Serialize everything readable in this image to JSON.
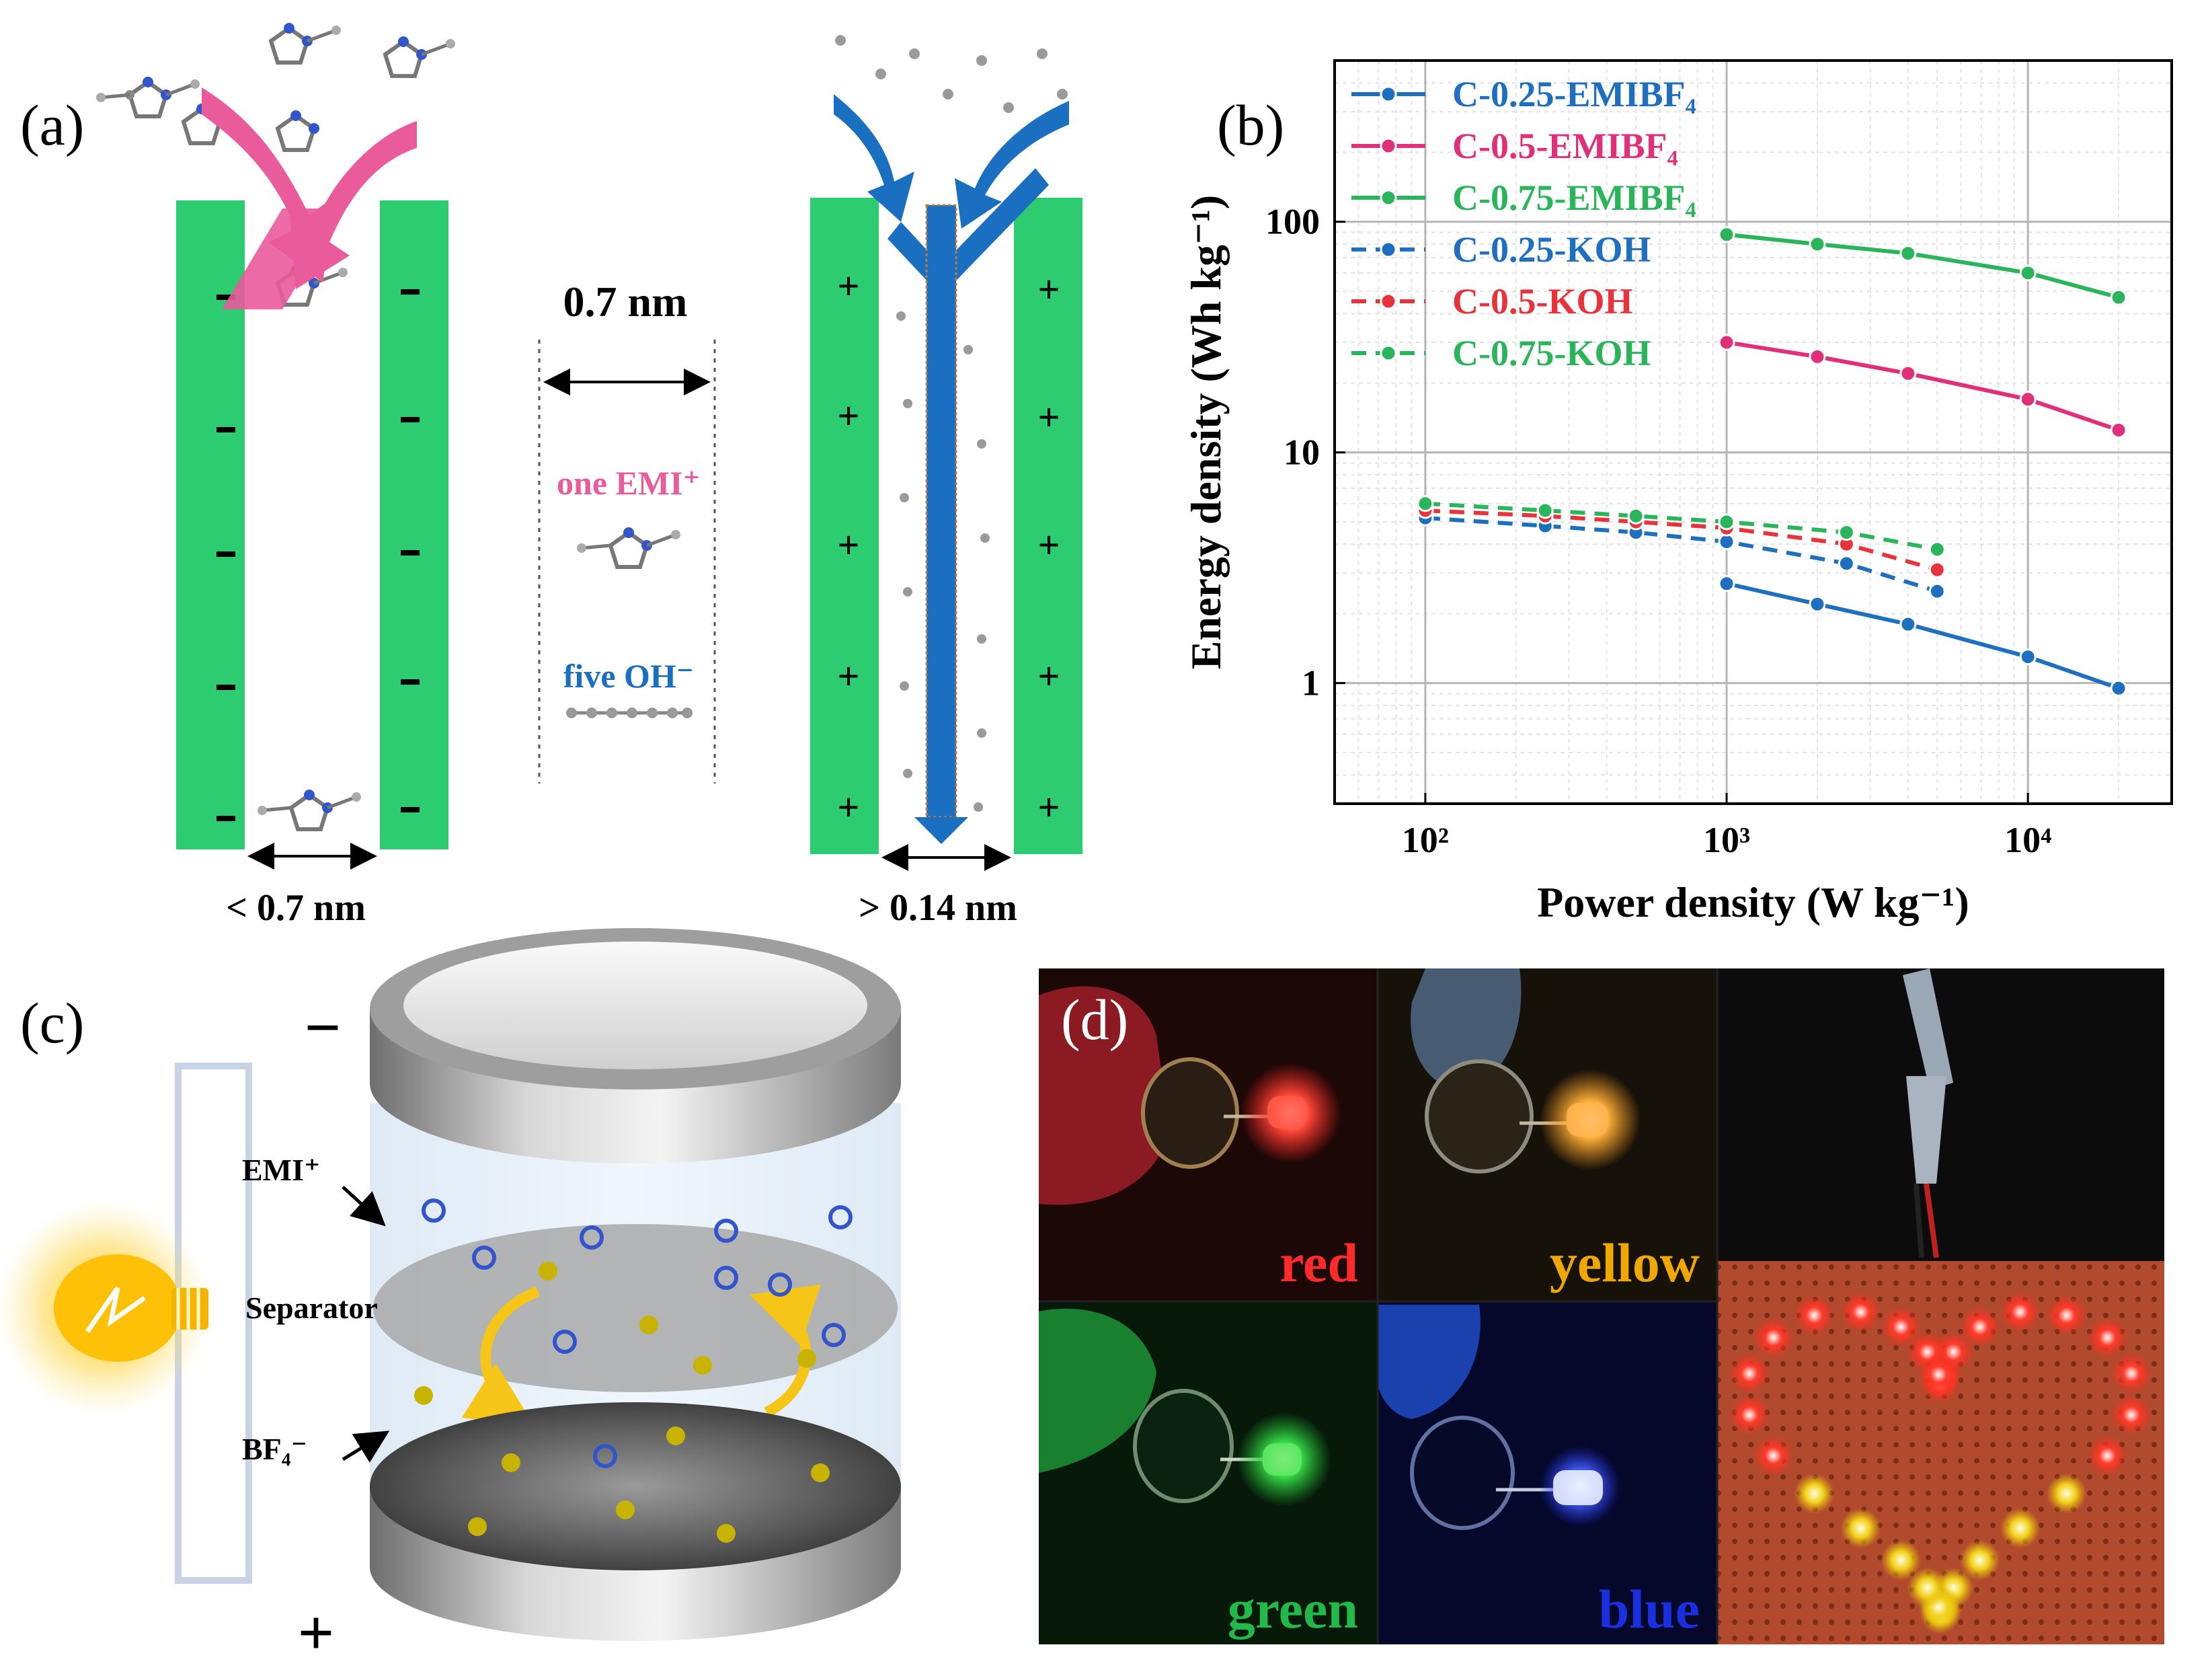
{
  "panel_a": {
    "label": "(a)",
    "left_gap": "< 0.7 nm",
    "right_gap": "> 0.14 nm",
    "center_width": "0.7 nm",
    "one_emi": "one EMI⁺",
    "five_oh": "five OH⁻",
    "neg_sign": "−",
    "pos_sign": "+"
  },
  "panel_b": {
    "label": "(b)"
  },
  "panel_c": {
    "label": "(c)",
    "emi": "EMI⁺",
    "separator": "Separator",
    "bf4": "BF₄⁻",
    "minus": "−",
    "plus": "+"
  },
  "panel_d": {
    "label": "(d)",
    "red": "red",
    "yellow": "yellow",
    "green": "green",
    "blue": "blue"
  },
  "chart_data": {
    "type": "line",
    "xscale": "log",
    "yscale": "log",
    "xlabel": "Power density (W kg⁻¹)",
    "ylabel": "Energy density (Wh kg⁻¹)",
    "xlim": [
      50,
      30000
    ],
    "ylim": [
      0.3,
      500
    ],
    "xticks": [
      {
        "v": 100,
        "label": "10²"
      },
      {
        "v": 1000,
        "label": "10³"
      },
      {
        "v": 10000,
        "label": "10⁴"
      }
    ],
    "yticks": [
      {
        "v": 1,
        "label": "1"
      },
      {
        "v": 10,
        "label": "10"
      },
      {
        "v": 100,
        "label": "100"
      }
    ],
    "grid": true,
    "legend_position": "top-left",
    "series": [
      {
        "name": "C-0.25-EMIBF₄",
        "color": "#1f6fc0",
        "style": "solid",
        "x": [
          1000,
          2000,
          4000,
          10000,
          20000
        ],
        "y": [
          2.7,
          2.2,
          1.8,
          1.3,
          0.95
        ]
      },
      {
        "name": "C-0.5-EMIBF₄",
        "color": "#e0307a",
        "style": "solid",
        "x": [
          1000,
          2000,
          4000,
          10000,
          20000
        ],
        "y": [
          30,
          26,
          22,
          17,
          12.5
        ]
      },
      {
        "name": "C-0.75-EMIBF₄",
        "color": "#2bb55a",
        "style": "solid",
        "x": [
          1000,
          2000,
          4000,
          10000,
          20000
        ],
        "y": [
          88,
          80,
          73,
          60,
          47
        ]
      },
      {
        "name": "C-0.25-KOH",
        "color": "#1f6fc0",
        "style": "dashed",
        "x": [
          100,
          250,
          500,
          1000,
          2500,
          5000
        ],
        "y": [
          5.2,
          4.8,
          4.5,
          4.1,
          3.3,
          2.5
        ]
      },
      {
        "name": "C-0.5-KOH",
        "color": "#e8323c",
        "style": "dashed",
        "x": [
          100,
          250,
          500,
          1000,
          2500,
          5000
        ],
        "y": [
          5.6,
          5.3,
          5.0,
          4.7,
          4.0,
          3.1
        ]
      },
      {
        "name": "C-0.75-KOH",
        "color": "#2bb55a",
        "style": "dashed",
        "x": [
          100,
          250,
          500,
          1000,
          2500,
          5000
        ],
        "y": [
          6.0,
          5.6,
          5.3,
          5.0,
          4.5,
          3.8
        ]
      }
    ]
  }
}
